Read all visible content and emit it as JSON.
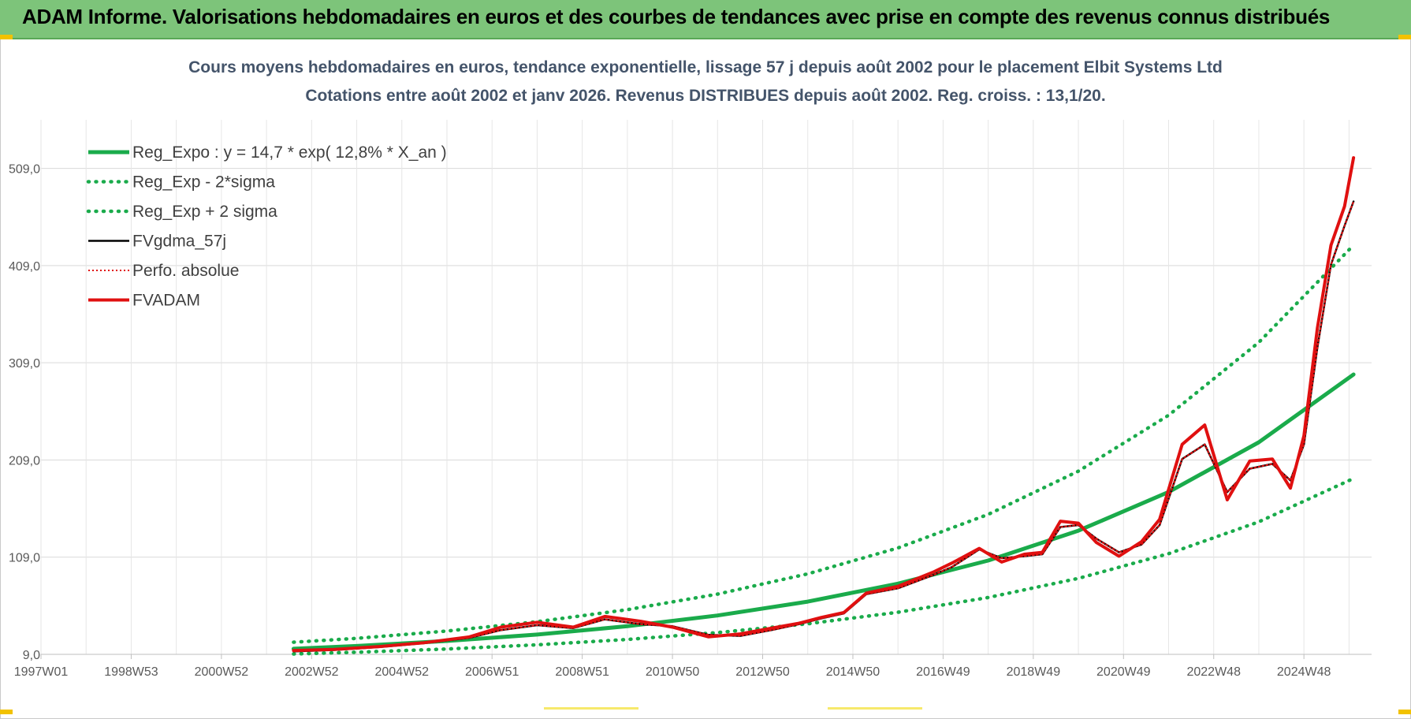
{
  "header": {
    "title": "ADAM Informe. Valorisations hebdomadaires en euros et des courbes de tendances avec prise en compte des revenus connus distribués"
  },
  "chart_data": {
    "type": "line",
    "title": "Cours moyens hebdomadaires en euros, tendance exponentielle, lissage 57 j depuis août 2002 pour le placement Elbit Systems Ltd",
    "subtitle": "Cotations entre août 2002 et janv 2026.  Revenus DISTRIBUES depuis août 2002. Reg. croiss. : 13,1/20.",
    "xlabel": "",
    "ylabel": "",
    "ylim": [
      9.0,
      559.0
    ],
    "xlim": [
      1997.0,
      2026.5
    ],
    "y_ticks": [
      "9,0",
      "109,0",
      "209,0",
      "309,0",
      "409,0",
      "509,0"
    ],
    "y_tick_values": [
      9,
      109,
      209,
      309,
      409,
      509
    ],
    "x_ticks": [
      "1997W01",
      "1998W53",
      "2000W52",
      "2002W52",
      "2004W52",
      "2006W51",
      "2008W51",
      "2010W50",
      "2012W50",
      "2014W50",
      "2016W49",
      "2018W49",
      "2020W49",
      "2022W48",
      "2024W48"
    ],
    "x_tick_values": [
      1997.0,
      1999.0,
      2001.0,
      2003.0,
      2005.0,
      2007.0,
      2009.0,
      2011.0,
      2013.0,
      2015.0,
      2017.0,
      2019.0,
      2021.0,
      2023.0,
      2025.0
    ],
    "grid": true,
    "legend_position": "top-left",
    "series": [
      {
        "name": "Reg_Expo : y = 14,7 * exp( 12,8% *  X_an )",
        "color": "#1aab4b",
        "style": "solid-thick",
        "x": [
          2002.6,
          2004,
          2006,
          2008,
          2010,
          2012,
          2014,
          2016,
          2018,
          2020,
          2022,
          2024,
          2026.1
        ],
        "y": [
          14.8,
          17.6,
          22.8,
          29.4,
          38.0,
          49.0,
          63.3,
          81.8,
          105.5,
          136.3,
          176.0,
          227.2,
          297.0
        ]
      },
      {
        "name": "Reg_Exp - 2*sigma",
        "color": "#1aab4b",
        "style": "dotted",
        "x": [
          2002.6,
          2004,
          2006,
          2008,
          2010,
          2012,
          2014,
          2016,
          2018,
          2020,
          2022,
          2024,
          2026.1
        ],
        "y": [
          9.4,
          11.2,
          14.5,
          18.8,
          24.3,
          31.4,
          40.5,
          52.3,
          67.5,
          87.2,
          112.6,
          145.4,
          190.0
        ]
      },
      {
        "name": "Reg_Exp + 2 sigma",
        "color": "#1aab4b",
        "style": "dotted",
        "x": [
          2002.6,
          2004,
          2006,
          2008,
          2010,
          2012,
          2014,
          2016,
          2018,
          2020,
          2022,
          2024,
          2026.1
        ],
        "y": [
          21.5,
          25.5,
          33.0,
          42.6,
          55.0,
          71.0,
          91.8,
          118.5,
          153.0,
          197.5,
          255.0,
          330.0,
          430.0
        ]
      },
      {
        "name": "FVgdma_57j",
        "color": "#000000",
        "style": "solid",
        "x": [
          2002.6,
          2003.5,
          2004.5,
          2005.5,
          2006.5,
          2007.2,
          2008.0,
          2008.8,
          2009.5,
          2010.3,
          2011.0,
          2011.8,
          2012.5,
          2013.2,
          2013.8,
          2014.3,
          2014.8,
          2015.3,
          2016.0,
          2016.8,
          2017.2,
          2017.8,
          2018.3,
          2018.8,
          2019.2,
          2019.6,
          2020.0,
          2020.4,
          2020.9,
          2021.4,
          2021.8,
          2022.3,
          2022.8,
          2023.3,
          2023.8,
          2024.3,
          2024.7,
          2025.0,
          2025.3,
          2025.6,
          2025.9,
          2026.1
        ],
        "y": [
          12.0,
          13.5,
          16.5,
          20.5,
          26.0,
          34.0,
          39.0,
          36.0,
          45.0,
          40.0,
          38.0,
          29.0,
          28.0,
          34.0,
          40.0,
          46.0,
          51.0,
          71.0,
          77.0,
          91.0,
          99.0,
          117.0,
          108.0,
          110.0,
          112.0,
          140.0,
          142.0,
          128.0,
          114.0,
          122.0,
          142.0,
          210.0,
          225.0,
          176.0,
          200.0,
          205.0,
          188.0,
          225.0,
          325.0,
          410.0,
          450.0,
          475.0
        ]
      },
      {
        "name": "Perfo. absolue",
        "color": "#e01010",
        "style": "dotted-thin",
        "x": [
          2002.6,
          2003.5,
          2004.5,
          2005.5,
          2006.5,
          2007.2,
          2008.0,
          2008.8,
          2009.5,
          2010.3,
          2011.0,
          2011.8,
          2012.5,
          2013.2,
          2013.8,
          2014.3,
          2014.8,
          2015.3,
          2016.0,
          2016.8,
          2017.2,
          2017.8,
          2018.3,
          2018.8,
          2019.2,
          2019.6,
          2020.0,
          2020.4,
          2020.9,
          2021.4,
          2021.8,
          2022.3,
          2022.8,
          2023.3,
          2023.8,
          2024.3,
          2024.7,
          2025.0,
          2025.3,
          2025.6,
          2025.9,
          2026.1
        ],
        "y": [
          12.0,
          13.5,
          16.5,
          20.5,
          26.0,
          34.0,
          39.0,
          36.0,
          45.0,
          40.0,
          38.0,
          29.0,
          28.0,
          34.0,
          40.0,
          46.0,
          51.0,
          71.0,
          77.0,
          91.0,
          99.0,
          117.0,
          108.0,
          110.0,
          112.0,
          140.0,
          142.0,
          128.0,
          114.0,
          122.0,
          142.0,
          210.0,
          225.0,
          176.0,
          200.0,
          205.0,
          188.0,
          225.0,
          325.0,
          410.0,
          450.0,
          475.0
        ]
      },
      {
        "name": "FVADAM",
        "color": "#e01010",
        "style": "solid-thick",
        "x": [
          2002.6,
          2003.5,
          2004.5,
          2005.5,
          2006.5,
          2007.2,
          2008.0,
          2008.8,
          2009.5,
          2010.3,
          2011.0,
          2011.8,
          2012.5,
          2013.2,
          2013.8,
          2014.3,
          2014.8,
          2015.3,
          2016.0,
          2016.8,
          2017.2,
          2017.8,
          2018.3,
          2018.8,
          2019.2,
          2019.6,
          2020.0,
          2020.4,
          2020.9,
          2021.4,
          2021.8,
          2022.3,
          2022.8,
          2023.3,
          2023.8,
          2024.3,
          2024.7,
          2025.0,
          2025.3,
          2025.6,
          2025.9,
          2026.1
        ],
        "y": [
          13.0,
          14.0,
          17.0,
          21.0,
          27.0,
          37.0,
          42.0,
          37.0,
          48.0,
          43.0,
          37.0,
          27.0,
          30.0,
          36.0,
          41.0,
          47.0,
          52.0,
          72.0,
          79.0,
          94.0,
          103.0,
          118.0,
          104.0,
          112.0,
          114.0,
          146.0,
          144.0,
          124.0,
          110.0,
          125.0,
          148.0,
          225.0,
          245.0,
          168.0,
          208.0,
          210.0,
          180.0,
          234.0,
          345.0,
          430.0,
          470.0,
          520.0
        ]
      }
    ]
  }
}
